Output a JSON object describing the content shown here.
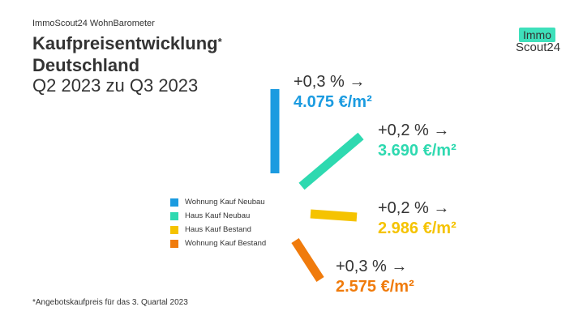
{
  "header": {
    "kicker": "ImmoScout24 WohnBarometer",
    "title_line1": "Kaufpreisentwicklung",
    "title_star": "*",
    "title_line2": "Deutschland",
    "subtitle": "Q2 2023 zu Q3 2023"
  },
  "logo": {
    "top": "Immo",
    "bottom": "Scout24",
    "color": "#3ee0bb"
  },
  "footnote": "*Angebotskaufpreis für das 3. Quartal 2023",
  "chart_data": {
    "type": "bar",
    "title": "Kaufpreisentwicklung Deutschland",
    "subtitle": "Q2 2023 zu Q3 2023",
    "series": [
      {
        "name": "Wohnung Kauf Neubau",
        "change": "+0,3 %",
        "price": "4.075 €/m²",
        "change_pct": 0.3,
        "price_eur_m2": 4075,
        "color": "#1b9be0"
      },
      {
        "name": "Haus Kauf Neubau",
        "change": "+0,2 %",
        "price": "3.690 €/m²",
        "change_pct": 0.2,
        "price_eur_m2": 3690,
        "color": "#2ed9b0"
      },
      {
        "name": "Haus Kauf Bestand",
        "change": "+0,2 %",
        "price": "2.986 €/m²",
        "change_pct": 0.2,
        "price_eur_m2": 2986,
        "color": "#f5c300"
      },
      {
        "name": "Wohnung Kauf Bestand",
        "change": "+0,3 %",
        "price": "2.575 €/m²",
        "change_pct": 0.3,
        "price_eur_m2": 2575,
        "color": "#f07b0c"
      }
    ],
    "arrow": "→"
  }
}
